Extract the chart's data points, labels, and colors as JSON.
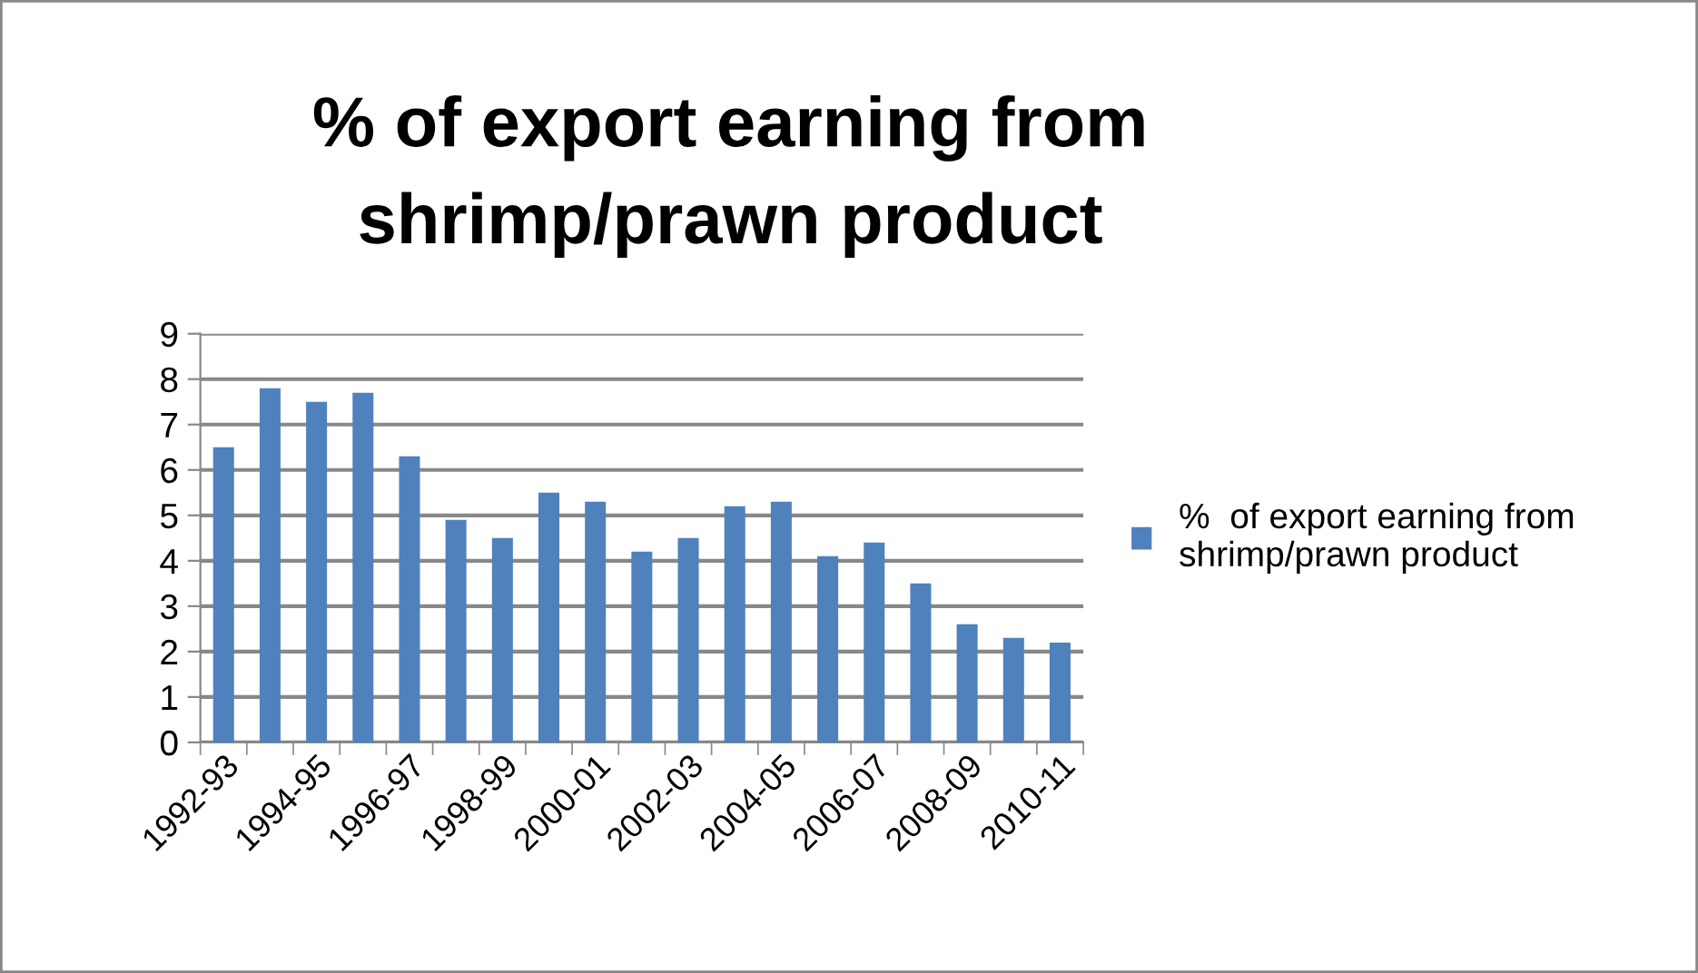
{
  "chart_data": {
    "type": "bar",
    "title": "% of export earning from\nshrimp/prawn product",
    "categories": [
      "1992-93",
      null,
      "1994-95",
      null,
      "1996-97",
      null,
      "1998-99",
      null,
      "2000-01",
      null,
      "2002-03",
      null,
      "2004-05",
      null,
      "2006-07",
      null,
      "2008-09",
      null,
      "2010-11"
    ],
    "series": [
      {
        "name": "%  of export earning from\nshrimp/prawn product",
        "color": "#4f81bd",
        "values": [
          6.5,
          7.8,
          7.5,
          7.7,
          6.3,
          4.9,
          4.5,
          5.5,
          5.3,
          4.2,
          4.5,
          5.2,
          5.3,
          4.1,
          4.4,
          3.5,
          2.6,
          2.3,
          2.2
        ]
      }
    ],
    "ylim": [
      0,
      9
    ],
    "yticks": [
      0,
      1,
      2,
      3,
      4,
      5,
      6,
      7,
      8,
      9
    ],
    "grid": "y",
    "legend": "right"
  }
}
